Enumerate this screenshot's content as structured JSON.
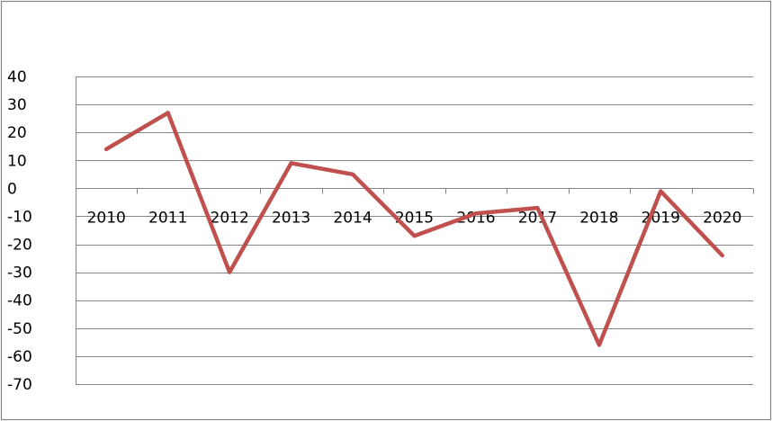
{
  "chart_data": {
    "type": "line",
    "categories": [
      "2010",
      "2011",
      "2012",
      "2013",
      "2014",
      "2015",
      "2016",
      "2017",
      "2018",
      "2019",
      "2020"
    ],
    "series": [
      {
        "values": [
          14,
          27,
          -30,
          9,
          5,
          -17,
          -9,
          -7,
          -56,
          -1,
          -24
        ],
        "color": "#c0504d"
      }
    ],
    "ylim": [
      -70,
      40
    ],
    "yticks": [
      40,
      30,
      20,
      10,
      0,
      -10,
      -20,
      -30,
      -40,
      -50,
      -60,
      -70
    ],
    "grid": true,
    "legend": "none",
    "border_color": "#868686",
    "grid_color": "#868686"
  }
}
